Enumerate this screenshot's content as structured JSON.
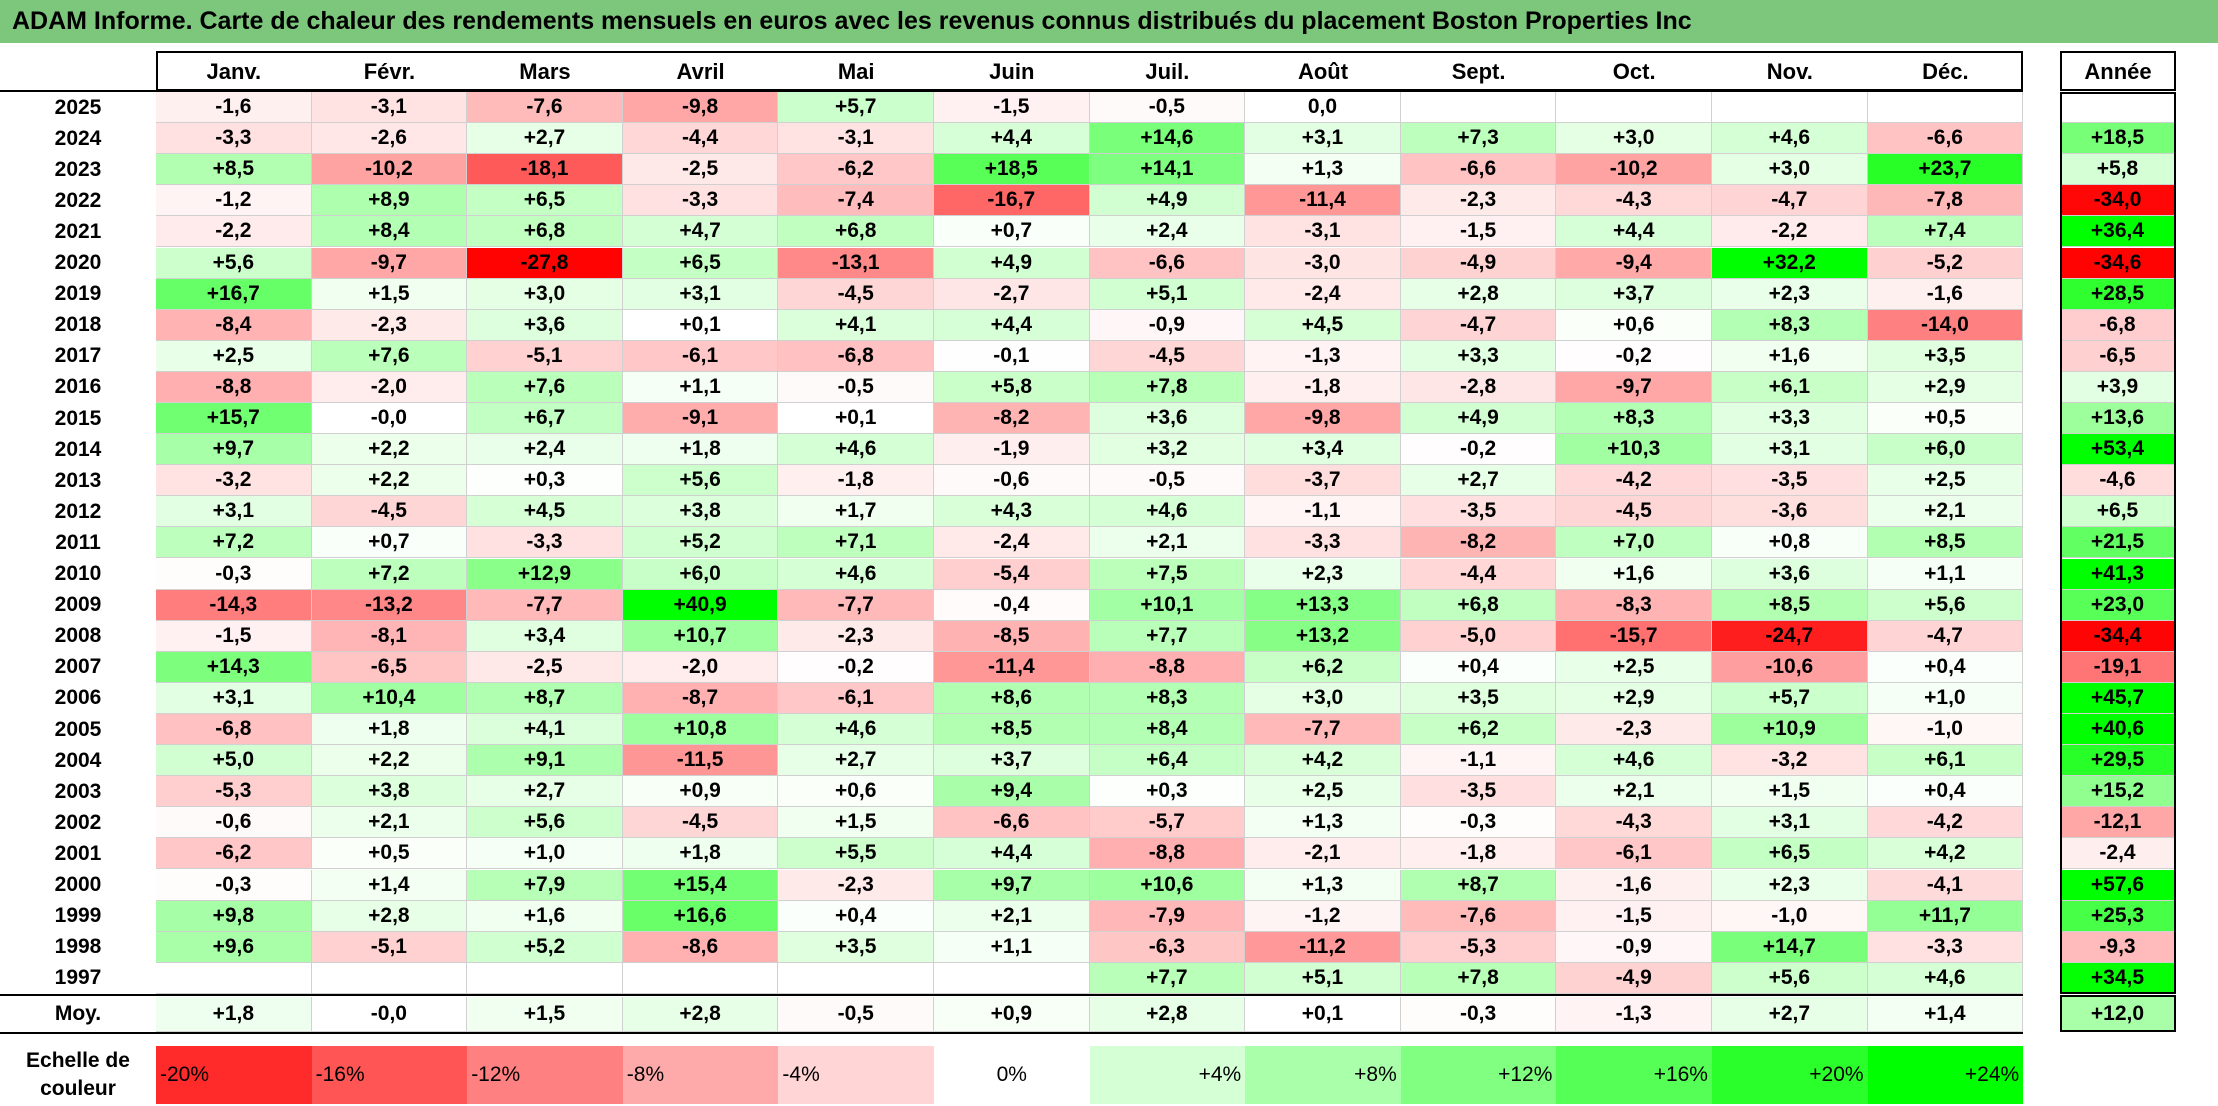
{
  "title": "ADAM Informe. Carte de chaleur des rendements mensuels en euros avec les revenus connus distribués du placement Boston Properties Inc",
  "colors": {
    "title_bg": "#7dc77d",
    "negative_max": "#ff0000",
    "neutral": "#ffffff",
    "positive_max": "#00ff00"
  },
  "chart_data": {
    "type": "heatmap",
    "title": "ADAM Informe. Carte de chaleur des rendements mensuels en euros avec les revenus connus distribués du placement Boston Properties Inc",
    "months": [
      "Janv.",
      "Févr.",
      "Mars",
      "Avril",
      "Mai",
      "Juin",
      "Juil.",
      "Août",
      "Sept.",
      "Oct.",
      "Nov.",
      "Déc."
    ],
    "year_header": "Année",
    "avg_label": "Moy.",
    "rows": [
      {
        "year": "2025",
        "months": [
          "-1,6",
          "-3,1",
          "-7,6",
          "-9,8",
          "+5,7",
          "-1,5",
          "-0,5",
          "0,0",
          "",
          "",
          "",
          ""
        ],
        "annual": ""
      },
      {
        "year": "2024",
        "months": [
          "-3,3",
          "-2,6",
          "+2,7",
          "-4,4",
          "-3,1",
          "+4,4",
          "+14,6",
          "+3,1",
          "+7,3",
          "+3,0",
          "+4,6",
          "-6,6"
        ],
        "annual": "+18,5"
      },
      {
        "year": "2023",
        "months": [
          "+8,5",
          "-10,2",
          "-18,1",
          "-2,5",
          "-6,2",
          "+18,5",
          "+14,1",
          "+1,3",
          "-6,6",
          "-10,2",
          "+3,0",
          "+23,7"
        ],
        "annual": "+5,8"
      },
      {
        "year": "2022",
        "months": [
          "-1,2",
          "+8,9",
          "+6,5",
          "-3,3",
          "-7,4",
          "-16,7",
          "+4,9",
          "-11,4",
          "-2,3",
          "-4,3",
          "-4,7",
          "-7,8"
        ],
        "annual": "-34,0"
      },
      {
        "year": "2021",
        "months": [
          "-2,2",
          "+8,4",
          "+6,8",
          "+4,7",
          "+6,8",
          "+0,7",
          "+2,4",
          "-3,1",
          "-1,5",
          "+4,4",
          "-2,2",
          "+7,4"
        ],
        "annual": "+36,4"
      },
      {
        "year": "2020",
        "months": [
          "+5,6",
          "-9,7",
          "-27,8",
          "+6,5",
          "-13,1",
          "+4,9",
          "-6,6",
          "-3,0",
          "-4,9",
          "-9,4",
          "+32,2",
          "-5,2"
        ],
        "annual": "-34,6"
      },
      {
        "year": "2019",
        "months": [
          "+16,7",
          "+1,5",
          "+3,0",
          "+3,1",
          "-4,5",
          "-2,7",
          "+5,1",
          "-2,4",
          "+2,8",
          "+3,7",
          "+2,3",
          "-1,6"
        ],
        "annual": "+28,5"
      },
      {
        "year": "2018",
        "months": [
          "-8,4",
          "-2,3",
          "+3,6",
          "+0,1",
          "+4,1",
          "+4,4",
          "-0,9",
          "+4,5",
          "-4,7",
          "+0,6",
          "+8,3",
          "-14,0"
        ],
        "annual": "-6,8"
      },
      {
        "year": "2017",
        "months": [
          "+2,5",
          "+7,6",
          "-5,1",
          "-6,1",
          "-6,8",
          "-0,1",
          "-4,5",
          "-1,3",
          "+3,3",
          "-0,2",
          "+1,6",
          "+3,5"
        ],
        "annual": "-6,5"
      },
      {
        "year": "2016",
        "months": [
          "-8,8",
          "-2,0",
          "+7,6",
          "+1,1",
          "-0,5",
          "+5,8",
          "+7,8",
          "-1,8",
          "-2,8",
          "-9,7",
          "+6,1",
          "+2,9"
        ],
        "annual": "+3,9"
      },
      {
        "year": "2015",
        "months": [
          "+15,7",
          "-0,0",
          "+6,7",
          "-9,1",
          "+0,1",
          "-8,2",
          "+3,6",
          "-9,8",
          "+4,9",
          "+8,3",
          "+3,3",
          "+0,5"
        ],
        "annual": "+13,6"
      },
      {
        "year": "2014",
        "months": [
          "+9,7",
          "+2,2",
          "+2,4",
          "+1,8",
          "+4,6",
          "-1,9",
          "+3,2",
          "+3,4",
          "-0,2",
          "+10,3",
          "+3,1",
          "+6,0"
        ],
        "annual": "+53,4"
      },
      {
        "year": "2013",
        "months": [
          "-3,2",
          "+2,2",
          "+0,3",
          "+5,6",
          "-1,8",
          "-0,6",
          "-0,5",
          "-3,7",
          "+2,7",
          "-4,2",
          "-3,5",
          "+2,5"
        ],
        "annual": "-4,6"
      },
      {
        "year": "2012",
        "months": [
          "+3,1",
          "-4,5",
          "+4,5",
          "+3,8",
          "+1,7",
          "+4,3",
          "+4,6",
          "-1,1",
          "-3,5",
          "-4,5",
          "-3,6",
          "+2,1"
        ],
        "annual": "+6,5"
      },
      {
        "year": "2011",
        "months": [
          "+7,2",
          "+0,7",
          "-3,3",
          "+5,2",
          "+7,1",
          "-2,4",
          "+2,1",
          "-3,3",
          "-8,2",
          "+7,0",
          "+0,8",
          "+8,5"
        ],
        "annual": "+21,5"
      },
      {
        "year": "2010",
        "months": [
          "-0,3",
          "+7,2",
          "+12,9",
          "+6,0",
          "+4,6",
          "-5,4",
          "+7,5",
          "+2,3",
          "-4,4",
          "+1,6",
          "+3,6",
          "+1,1"
        ],
        "annual": "+41,3"
      },
      {
        "year": "2009",
        "months": [
          "-14,3",
          "-13,2",
          "-7,7",
          "+40,9",
          "-7,7",
          "-0,4",
          "+10,1",
          "+13,3",
          "+6,8",
          "-8,3",
          "+8,5",
          "+5,6"
        ],
        "annual": "+23,0"
      },
      {
        "year": "2008",
        "months": [
          "-1,5",
          "-8,1",
          "+3,4",
          "+10,7",
          "-2,3",
          "-8,5",
          "+7,7",
          "+13,2",
          "-5,0",
          "-15,7",
          "-24,7",
          "-4,7"
        ],
        "annual": "-34,4"
      },
      {
        "year": "2007",
        "months": [
          "+14,3",
          "-6,5",
          "-2,5",
          "-2,0",
          "-0,2",
          "-11,4",
          "-8,8",
          "+6,2",
          "+0,4",
          "+2,5",
          "-10,6",
          "+0,4"
        ],
        "annual": "-19,1"
      },
      {
        "year": "2006",
        "months": [
          "+3,1",
          "+10,4",
          "+8,7",
          "-8,7",
          "-6,1",
          "+8,6",
          "+8,3",
          "+3,0",
          "+3,5",
          "+2,9",
          "+5,7",
          "+1,0"
        ],
        "annual": "+45,7"
      },
      {
        "year": "2005",
        "months": [
          "-6,8",
          "+1,8",
          "+4,1",
          "+10,8",
          "+4,6",
          "+8,5",
          "+8,4",
          "-7,7",
          "+6,2",
          "-2,3",
          "+10,9",
          "-1,0"
        ],
        "annual": "+40,6"
      },
      {
        "year": "2004",
        "months": [
          "+5,0",
          "+2,2",
          "+9,1",
          "-11,5",
          "+2,7",
          "+3,7",
          "+6,4",
          "+4,2",
          "-1,1",
          "+4,6",
          "-3,2",
          "+6,1"
        ],
        "annual": "+29,5"
      },
      {
        "year": "2003",
        "months": [
          "-5,3",
          "+3,8",
          "+2,7",
          "+0,9",
          "+0,6",
          "+9,4",
          "+0,3",
          "+2,5",
          "-3,5",
          "+2,1",
          "+1,5",
          "+0,4"
        ],
        "annual": "+15,2"
      },
      {
        "year": "2002",
        "months": [
          "-0,6",
          "+2,1",
          "+5,6",
          "-4,5",
          "+1,5",
          "-6,6",
          "-5,7",
          "+1,3",
          "-0,3",
          "-4,3",
          "+3,1",
          "-4,2"
        ],
        "annual": "-12,1"
      },
      {
        "year": "2001",
        "months": [
          "-6,2",
          "+0,5",
          "+1,0",
          "+1,8",
          "+5,5",
          "+4,4",
          "-8,8",
          "-2,1",
          "-1,8",
          "-6,1",
          "+6,5",
          "+4,2"
        ],
        "annual": "-2,4"
      },
      {
        "year": "2000",
        "months": [
          "-0,3",
          "+1,4",
          "+7,9",
          "+15,4",
          "-2,3",
          "+9,7",
          "+10,6",
          "+1,3",
          "+8,7",
          "-1,6",
          "+2,3",
          "-4,1"
        ],
        "annual": "+57,6"
      },
      {
        "year": "1999",
        "months": [
          "+9,8",
          "+2,8",
          "+1,6",
          "+16,6",
          "+0,4",
          "+2,1",
          "-7,9",
          "-1,2",
          "-7,6",
          "-1,5",
          "-1,0",
          "+11,7"
        ],
        "annual": "+25,3"
      },
      {
        "year": "1998",
        "months": [
          "+9,6",
          "-5,1",
          "+5,2",
          "-8,6",
          "+3,5",
          "+1,1",
          "-6,3",
          "-11,2",
          "-5,3",
          "-0,9",
          "+14,7",
          "-3,3"
        ],
        "annual": "-9,3"
      },
      {
        "year": "1997",
        "months": [
          "",
          "",
          "",
          "",
          "",
          "",
          "+7,7",
          "+5,1",
          "+7,8",
          "-4,9",
          "+5,6",
          "+4,6"
        ],
        "annual": "+34,5"
      }
    ],
    "average": {
      "months": [
        "+1,8",
        "-0,0",
        "+1,5",
        "+2,8",
        "-0,5",
        "+0,9",
        "+2,8",
        "+0,1",
        "-0,3",
        "-1,3",
        "+2,7",
        "+1,4"
      ],
      "annual": "+12,0"
    },
    "color_scale": {
      "label_line1": "Echelle de",
      "label_line2": "couleur",
      "stops": [
        "-20%",
        "-16%",
        "-12%",
        "-8%",
        "-4%",
        "0%",
        "+4%",
        "+8%",
        "+12%",
        "+16%",
        "+20%",
        "+24%"
      ],
      "values": [
        -20,
        -16,
        -12,
        -8,
        -4,
        0,
        4,
        8,
        12,
        16,
        20,
        24
      ]
    }
  }
}
